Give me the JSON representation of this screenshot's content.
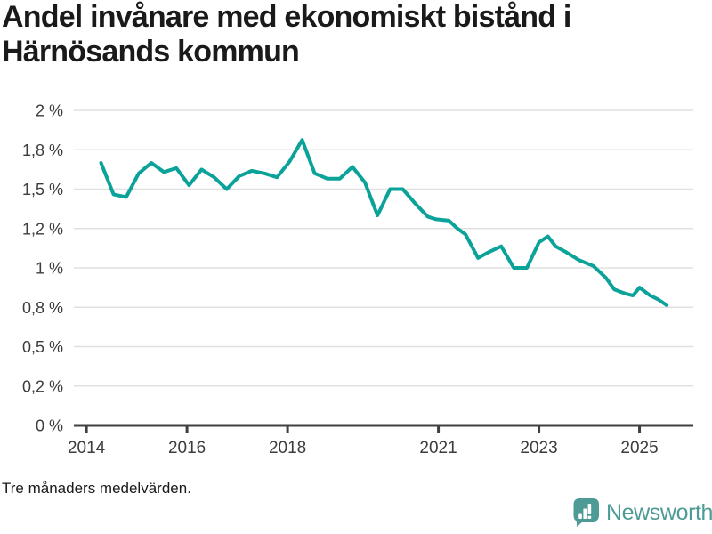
{
  "title_lines": [
    "Andel invånare med ekonomiskt bistånd i",
    "Härnösands kommun"
  ],
  "footnote": "Tre månaders medelvärden.",
  "brand": {
    "name": "Newsworthy"
  },
  "colors": {
    "line": "#0BA29A",
    "brand": "#4E9B96",
    "grid": "#E0E0E0",
    "axis": "#404040",
    "tick_label": "#3C3C3C",
    "title": "#1A1A1A"
  },
  "chart_data": {
    "type": "line",
    "title": "Andel invånare med ekonomiskt bistånd i Härnösands kommun",
    "annotation": "Tre månaders medelvärden.",
    "legend": "none",
    "grid": "horizontal",
    "x_axis": {
      "range": [
        2013.75,
        2026.07
      ],
      "tick_values": [
        2014,
        2016,
        2018,
        2021,
        2023,
        2025
      ],
      "tick_labels": [
        "2014",
        "2016",
        "2018",
        "2021",
        "2023",
        "2025"
      ]
    },
    "y_axis": {
      "unit": "%",
      "equal_spaced_ticks": true,
      "tick_values": [
        0,
        0.2,
        0.5,
        0.8,
        1,
        1.2,
        1.5,
        1.8,
        2
      ],
      "tick_labels": [
        "0 %",
        "0,2 %",
        "0,5 %",
        "0,8 %",
        "1 %",
        "1,2 %",
        "1,5 %",
        "1,8 %",
        "2 %"
      ]
    },
    "series": [
      {
        "name": "Härnösands kommun",
        "color": "#0BA29A",
        "points": [
          [
            2014.29,
            1.7
          ],
          [
            2014.54,
            1.46
          ],
          [
            2014.79,
            1.44
          ],
          [
            2015.04,
            1.62
          ],
          [
            2015.29,
            1.7
          ],
          [
            2015.54,
            1.63
          ],
          [
            2015.79,
            1.66
          ],
          [
            2016.04,
            1.53
          ],
          [
            2016.29,
            1.65
          ],
          [
            2016.54,
            1.59
          ],
          [
            2016.79,
            1.5
          ],
          [
            2017.04,
            1.6
          ],
          [
            2017.29,
            1.64
          ],
          [
            2017.54,
            1.62
          ],
          [
            2017.79,
            1.59
          ],
          [
            2018.04,
            1.71
          ],
          [
            2018.29,
            1.85
          ],
          [
            2018.54,
            1.62
          ],
          [
            2018.79,
            1.58
          ],
          [
            2019.04,
            1.58
          ],
          [
            2019.29,
            1.67
          ],
          [
            2019.54,
            1.55
          ],
          [
            2019.79,
            1.3
          ],
          [
            2020.04,
            1.5
          ],
          [
            2020.29,
            1.5
          ],
          [
            2020.54,
            1.39
          ],
          [
            2020.79,
            1.29
          ],
          [
            2020.96,
            1.27
          ],
          [
            2021.21,
            1.26
          ],
          [
            2021.38,
            1.2
          ],
          [
            2021.54,
            1.17
          ],
          [
            2021.79,
            1.05
          ],
          [
            2022.0,
            1.08
          ],
          [
            2022.25,
            1.11
          ],
          [
            2022.5,
            1.0
          ],
          [
            2022.76,
            1.0
          ],
          [
            2023.0,
            1.13
          ],
          [
            2023.18,
            1.16
          ],
          [
            2023.33,
            1.11
          ],
          [
            2023.54,
            1.08
          ],
          [
            2023.79,
            1.04
          ],
          [
            2024.08,
            1.01
          ],
          [
            2024.33,
            0.95
          ],
          [
            2024.5,
            0.89
          ],
          [
            2024.71,
            0.87
          ],
          [
            2024.87,
            0.86
          ],
          [
            2025.0,
            0.9
          ],
          [
            2025.21,
            0.86
          ],
          [
            2025.37,
            0.84
          ],
          [
            2025.54,
            0.81
          ]
        ]
      }
    ]
  }
}
